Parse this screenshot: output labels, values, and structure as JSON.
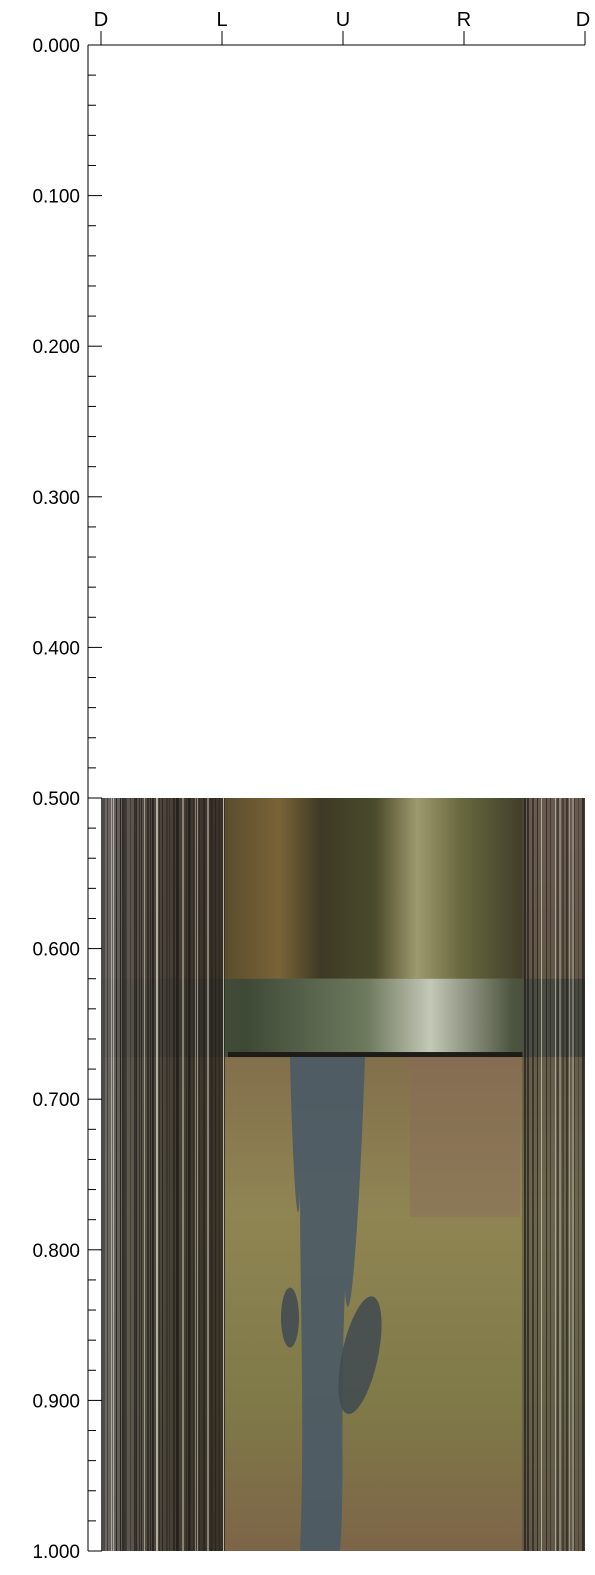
{
  "orientation_labels": [
    "D",
    "L",
    "U",
    "R",
    "D"
  ],
  "depth_axis": {
    "min": 0.0,
    "max": 1.0,
    "major_step": 0.1,
    "minor_step": 0.02,
    "labels": [
      "0.000",
      "0.100",
      "0.200",
      "0.300",
      "0.400",
      "0.500",
      "0.600",
      "0.700",
      "0.800",
      "0.900",
      "1.000"
    ]
  },
  "image_depth_range": [
    0.5,
    1.0
  ],
  "colors": {
    "pipe_dark": "#3e3a26",
    "pipe_mid": "#6b6238",
    "pipe_light": "#b4b091",
    "joint_band": "#4d5a4d",
    "soil_brown": "#7d6548",
    "soil_yellow": "#8f8553",
    "soil_red": "#8a6b5a",
    "water_blue": "#4a5a66",
    "stripe_dark": "#1e1c18",
    "stripe_light": "#d8d8c8"
  }
}
